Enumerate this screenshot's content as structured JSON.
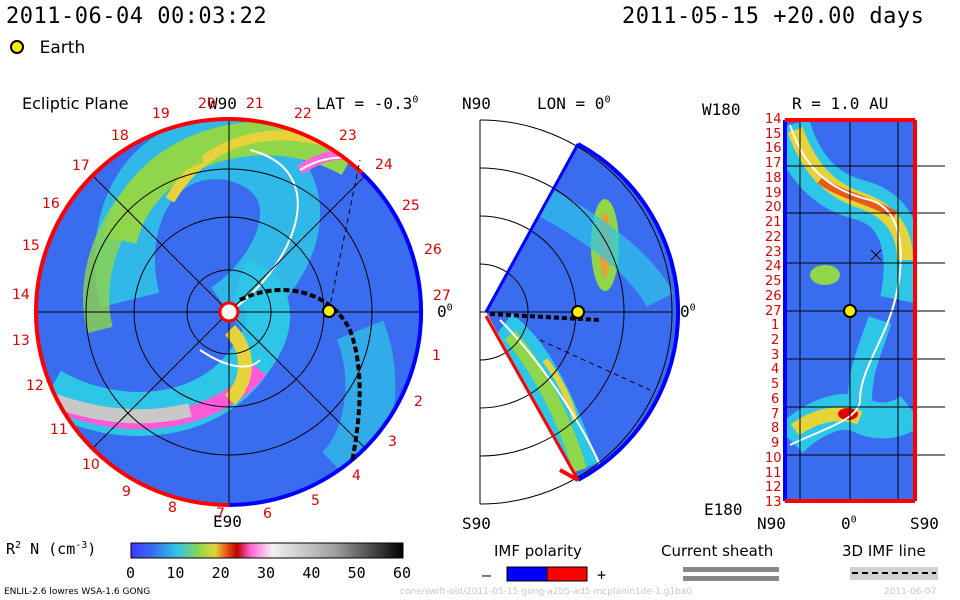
{
  "header": {
    "timestamp": "2011-06-04 00:03:22",
    "run_info": "2011-05-15 +20.00 days",
    "earth_legend": "Earth"
  },
  "ecliptic_panel": {
    "title": "Ecliptic Plane",
    "top_label": "W90",
    "bottom_label": "E90",
    "lat_label": "LAT = -0.3",
    "lat_sup": "0",
    "zero_label": "0",
    "zero_sup": "0",
    "sector_labels": [
      "19",
      "20",
      "21",
      "22",
      "23",
      "24",
      "25",
      "26",
      "27",
      "1",
      "2",
      "3",
      "4",
      "5",
      "6",
      "7",
      "8",
      "9",
      "10",
      "11",
      "12",
      "13",
      "14",
      "15",
      "16",
      "17",
      "18"
    ]
  },
  "meridional_panel": {
    "top_label": "N90",
    "bottom_label": "S90",
    "lon_label": "LON = 0",
    "lon_sup": "0",
    "zero_label": "0",
    "zero_sup": "0"
  },
  "radial_panel": {
    "r_label": "R = 1.0 AU",
    "top_left": "W180",
    "bottom_left": "E180",
    "x_labels": [
      "N90",
      "0",
      "S90"
    ],
    "x_zero_sup": "0",
    "y_labels": [
      "14",
      "15",
      "16",
      "17",
      "18",
      "19",
      "20",
      "21",
      "22",
      "23",
      "24",
      "25",
      "26",
      "27",
      "1",
      "2",
      "3",
      "4",
      "5",
      "6",
      "7",
      "8",
      "9",
      "10",
      "11",
      "12",
      "13"
    ]
  },
  "colorbar": {
    "label": "R",
    "label_sup": "2",
    "label_rest": " N (cm",
    "unit_sup": "-3",
    "label_close": ")",
    "ticks": [
      "0",
      "10",
      "20",
      "30",
      "40",
      "50",
      "60"
    ]
  },
  "legend": {
    "imf_title": "IMF polarity",
    "imf_minus": "–",
    "imf_plus": "+",
    "sheath_title": "Current sheath",
    "imf3d_title": "3D IMF line",
    "colors": {
      "neg": "#0000ff",
      "pos": "#ff0000"
    }
  },
  "footer": {
    "model_info": "ENLIL-2.6 lowres WSA-1.6 GONG",
    "path": "cone/swift-old/2011-05-15-gong-a2b5-ad5-mcplanin1de-1.g1ba0",
    "date": "2011-06-07"
  }
}
